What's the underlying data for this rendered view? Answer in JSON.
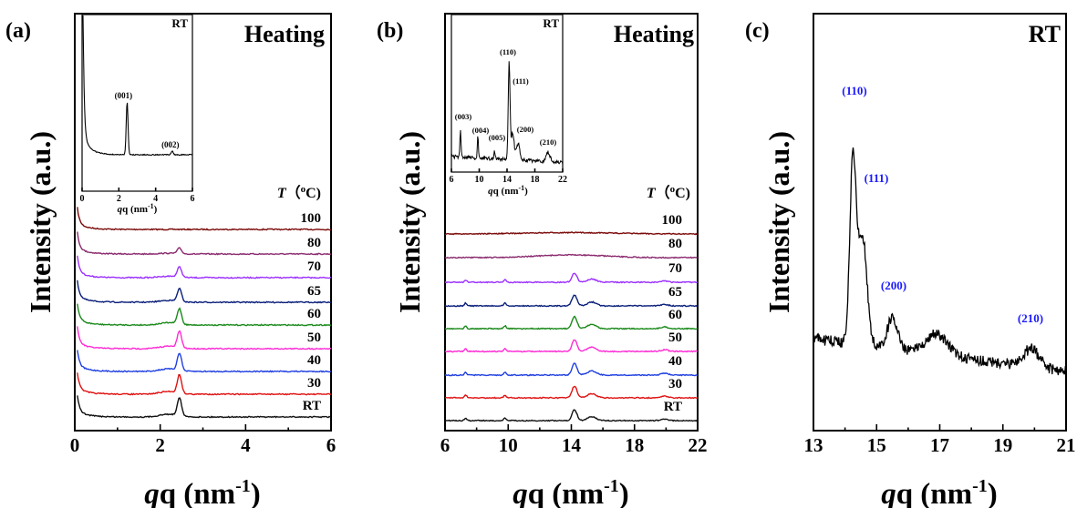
{
  "chart_data": [
    {
      "panel_label": "(a)",
      "type": "line",
      "corner_text": "Heating",
      "xlabel": "q (nm",
      "xlabel_sup": "-1",
      "xlabel_close": ")",
      "ylabel": "Intensity (a.u.)",
      "xlim": [
        0,
        6
      ],
      "xticks": [
        "0",
        "2",
        "4",
        "6"
      ],
      "temperature_header": "T",
      "temperature_unit_open": "（",
      "temperature_unit_sup": "o",
      "temperature_unit": "C)",
      "peak_position": 2.45,
      "series": [
        {
          "name": "100",
          "color": "#7b0a0a",
          "peak_height": 0
        },
        {
          "name": "80",
          "color": "#8a2a6e",
          "peak_height": 6
        },
        {
          "name": "70",
          "color": "#9b30ff",
          "peak_height": 11
        },
        {
          "name": "65",
          "color": "#0a1f7a",
          "peak_height": 14
        },
        {
          "name": "60",
          "color": "#1b8a1b",
          "peak_height": 17
        },
        {
          "name": "50",
          "color": "#ff2ad4",
          "peak_height": 18
        },
        {
          "name": "40",
          "color": "#1f3fe0",
          "peak_height": 19
        },
        {
          "name": "30",
          "color": "#e01010",
          "peak_height": 20
        },
        {
          "name": "RT",
          "color": "#111111",
          "peak_height": 20
        }
      ],
      "inset": {
        "title": "RT",
        "xlabel": "q (nm",
        "xlabel_sup": "-1",
        "xlabel_close": ")",
        "xticks": [
          "0",
          "2",
          "4",
          "6"
        ],
        "xlim": [
          0,
          6
        ],
        "peaks": [
          {
            "label": "(001)",
            "x": 2.45
          },
          {
            "label": "(002)",
            "x": 4.9
          }
        ]
      }
    },
    {
      "panel_label": "(b)",
      "type": "line",
      "corner_text": "Heating",
      "xlabel": "q (nm",
      "xlabel_sup": "-1",
      "xlabel_close": ")",
      "ylabel": "Intensity (a.u.)",
      "xlim": [
        6,
        22
      ],
      "xticks": [
        "6",
        "10",
        "14",
        "18",
        "22"
      ],
      "temperature_header": "T",
      "temperature_unit_open": "（",
      "temperature_unit_sup": "o",
      "temperature_unit": "C)",
      "series": [
        {
          "name": "100",
          "color": "#7b0a0a"
        },
        {
          "name": "80",
          "color": "#8a2a6e"
        },
        {
          "name": "70",
          "color": "#9b30ff"
        },
        {
          "name": "65",
          "color": "#0a1f7a"
        },
        {
          "name": "60",
          "color": "#1b8a1b"
        },
        {
          "name": "50",
          "color": "#ff2ad4"
        },
        {
          "name": "40",
          "color": "#1f3fe0"
        },
        {
          "name": "30",
          "color": "#e01010"
        },
        {
          "name": "RT",
          "color": "#111111"
        }
      ],
      "inset": {
        "title": "RT",
        "xlabel": "q (nm",
        "xlabel_sup": "-1",
        "xlabel_close": ")",
        "xticks": [
          "6",
          "10",
          "14",
          "18",
          "22"
        ],
        "xlim": [
          6,
          22
        ],
        "peaks": [
          {
            "label": "(003)",
            "x": 7.3
          },
          {
            "label": "(004)",
            "x": 9.8
          },
          {
            "label": "(005)",
            "x": 12.2
          },
          {
            "label": "(110)",
            "x": 14.3
          },
          {
            "label": "(111)",
            "x": 14.7
          },
          {
            "label": "(200)",
            "x": 15.6
          },
          {
            "label": "(210)",
            "x": 19.9
          }
        ]
      }
    },
    {
      "panel_label": "(c)",
      "type": "line",
      "corner_text": "RT",
      "xlabel": "q (nm",
      "xlabel_sup": "-1",
      "xlabel_close": ")",
      "ylabel": "Intensity (a.u.)",
      "xlim": [
        13,
        21
      ],
      "xticks": [
        "13",
        "15",
        "17",
        "19",
        "21"
      ],
      "peak_label_color": "#1a1aff",
      "peaks": [
        {
          "label": "(110)",
          "x": 14.3
        },
        {
          "label": "(111)",
          "x": 14.55
        },
        {
          "label": "(200)",
          "x": 15.5
        },
        {
          "label": "(210)",
          "x": 19.9
        }
      ]
    }
  ]
}
